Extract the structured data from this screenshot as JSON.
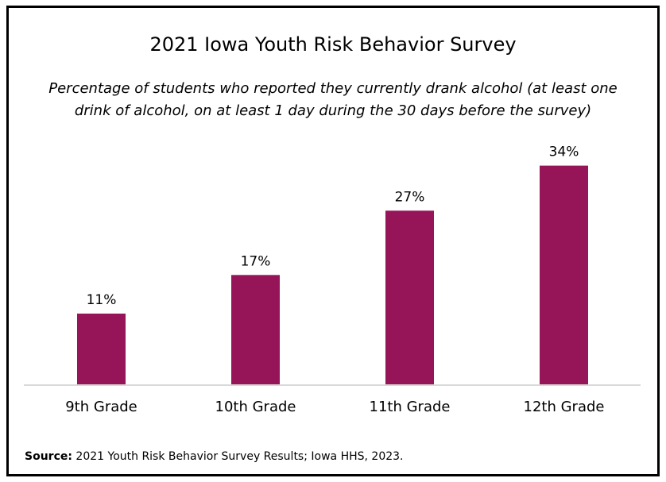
{
  "chart_data": {
    "type": "bar",
    "title": "2021 Iowa Youth Risk Behavior Survey",
    "subtitle": "Percentage of students who reported they currently drank alcohol (at least one drink of alcohol, on at least 1 day during the 30 days before the survey)",
    "categories": [
      "9th Grade",
      "10th Grade",
      "11th Grade",
      "12th Grade"
    ],
    "values": [
      11,
      17,
      27,
      34
    ],
    "data_labels": [
      "11%",
      "17%",
      "27%",
      "34%"
    ],
    "xlabel": "",
    "ylabel": "",
    "ylim": [
      0,
      36
    ],
    "grid": false,
    "legend": "none",
    "bar_color": "#961458",
    "baseline_color": "#d9d9d9"
  },
  "source": {
    "label": "Source:",
    "text": " 2021 Youth Risk Behavior Survey Results; Iowa HHS, 2023."
  }
}
